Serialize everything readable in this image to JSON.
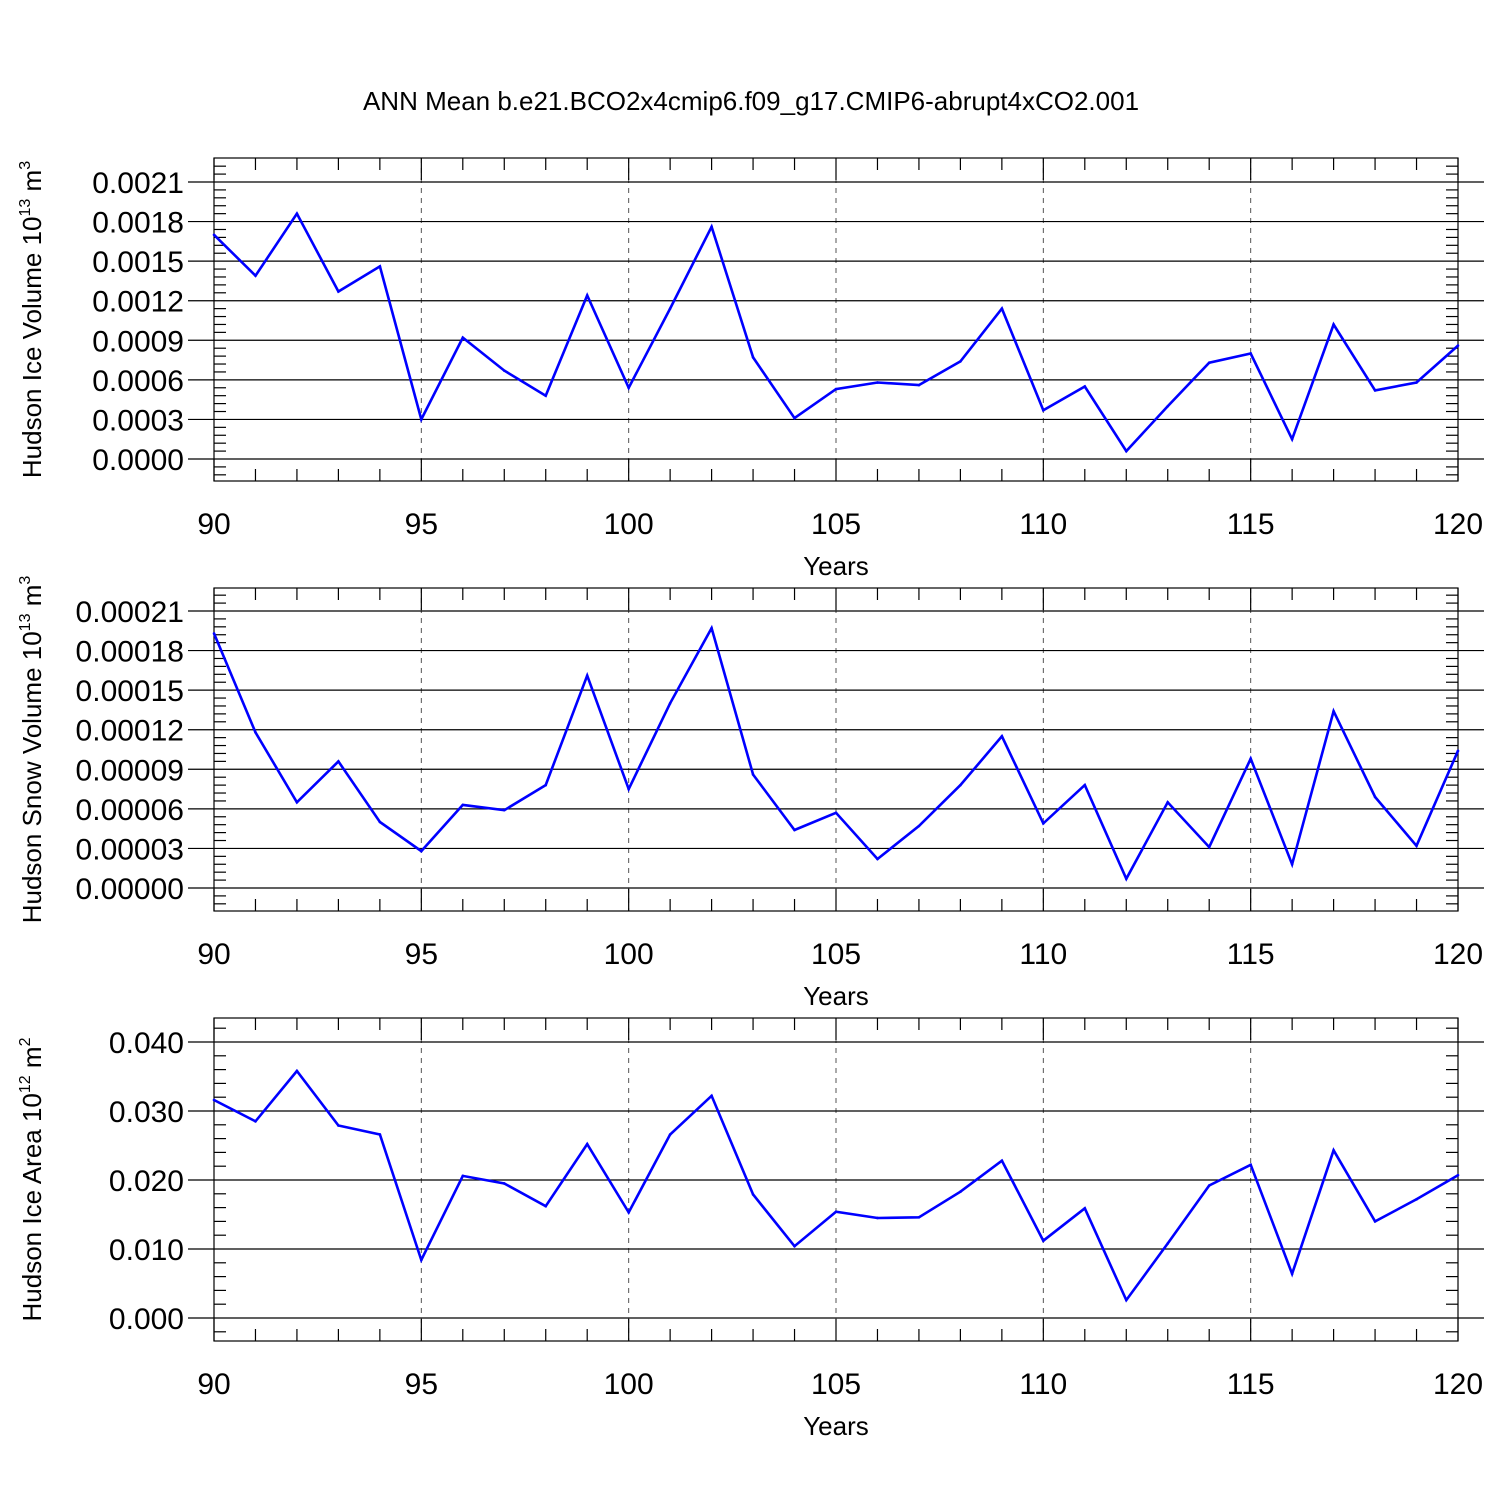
{
  "title": "ANN Mean b.e21.BCO2x4cmip6.f09_g17.CMIP6-abrupt4xCO2.001",
  "line_color": "#0000ff",
  "chart_data": [
    {
      "type": "line",
      "ylabel_main": "Hudson Ice Volume 10",
      "ylabel_exp": "13",
      "ylabel_unit": " m",
      "ylabel_unit_exp": "3",
      "xlabel": "Years",
      "xlim": [
        90,
        120
      ],
      "ylim": [
        0,
        0.0021
      ],
      "x_ticks": [
        "90",
        "95",
        "100",
        "105",
        "110",
        "115",
        "120"
      ],
      "y_ticks": [
        "0.0000",
        "0.0003",
        "0.0006",
        "0.0009",
        "0.0012",
        "0.0015",
        "0.0018",
        "0.0021"
      ],
      "x": [
        90,
        91,
        92,
        93,
        94,
        95,
        96,
        97,
        98,
        99,
        100,
        101,
        102,
        103,
        104,
        105,
        106,
        107,
        108,
        109,
        110,
        111,
        112,
        113,
        114,
        115,
        116,
        117,
        118,
        119,
        120
      ],
      "values": [
        0.0017,
        0.00139,
        0.00186,
        0.00127,
        0.00146,
        0.0003,
        0.00092,
        0.00067,
        0.00048,
        0.00124,
        0.00054,
        0.00114,
        0.00176,
        0.00077,
        0.00031,
        0.00053,
        0.00058,
        0.00056,
        0.00074,
        0.00114,
        0.00037,
        0.00055,
        6e-05,
        0.0004,
        0.00073,
        0.0008,
        0.00015,
        0.00102,
        0.00052,
        0.00058,
        0.00086
      ]
    },
    {
      "type": "line",
      "ylabel_main": "Hudson Snow Volume 10",
      "ylabel_exp": "13",
      "ylabel_unit": " m",
      "ylabel_unit_exp": "3",
      "xlabel": "Years",
      "xlim": [
        90,
        120
      ],
      "ylim": [
        0,
        0.00021
      ],
      "x_ticks": [
        "90",
        "95",
        "100",
        "105",
        "110",
        "115",
        "120"
      ],
      "y_ticks": [
        "0.00000",
        "0.00003",
        "0.00006",
        "0.00009",
        "0.00012",
        "0.00015",
        "0.00018",
        "0.00021"
      ],
      "x": [
        90,
        91,
        92,
        93,
        94,
        95,
        96,
        97,
        98,
        99,
        100,
        101,
        102,
        103,
        104,
        105,
        106,
        107,
        108,
        109,
        110,
        111,
        112,
        113,
        114,
        115,
        116,
        117,
        118,
        119,
        120
      ],
      "values": [
        0.000193,
        0.000118,
        6.5e-05,
        9.6e-05,
        5e-05,
        2.8e-05,
        6.3e-05,
        5.9e-05,
        7.8e-05,
        0.000161,
        7.5e-05,
        0.00014,
        0.000197,
        8.6e-05,
        4.4e-05,
        5.7e-05,
        2.2e-05,
        4.7e-05,
        7.8e-05,
        0.000115,
        4.9e-05,
        7.8e-05,
        7e-06,
        6.5e-05,
        3.1e-05,
        9.8e-05,
        1.8e-05,
        0.000134,
        6.9e-05,
        3.2e-05,
        0.000104
      ]
    },
    {
      "type": "line",
      "ylabel_main": "Hudson Ice Area 10",
      "ylabel_exp": "12",
      "ylabel_unit": " m",
      "ylabel_unit_exp": "2",
      "xlabel": "Years",
      "xlim": [
        90,
        120
      ],
      "ylim": [
        0,
        0.04
      ],
      "x_ticks": [
        "90",
        "95",
        "100",
        "105",
        "110",
        "115",
        "120"
      ],
      "y_ticks": [
        "0.000",
        "0.010",
        "0.020",
        "0.030",
        "0.040"
      ],
      "x": [
        90,
        91,
        92,
        93,
        94,
        95,
        96,
        97,
        98,
        99,
        100,
        101,
        102,
        103,
        104,
        105,
        106,
        107,
        108,
        109,
        110,
        111,
        112,
        113,
        114,
        115,
        116,
        117,
        118,
        119,
        120
      ],
      "values": [
        0.0316,
        0.0285,
        0.0358,
        0.0279,
        0.0266,
        0.0084,
        0.0206,
        0.0195,
        0.0162,
        0.0252,
        0.0153,
        0.0266,
        0.0322,
        0.0179,
        0.0104,
        0.0154,
        0.0145,
        0.0146,
        0.0183,
        0.0228,
        0.0112,
        0.0159,
        0.0026,
        0.0108,
        0.0192,
        0.0222,
        0.0064,
        0.0243,
        0.014,
        0.0172,
        0.0207
      ]
    }
  ]
}
